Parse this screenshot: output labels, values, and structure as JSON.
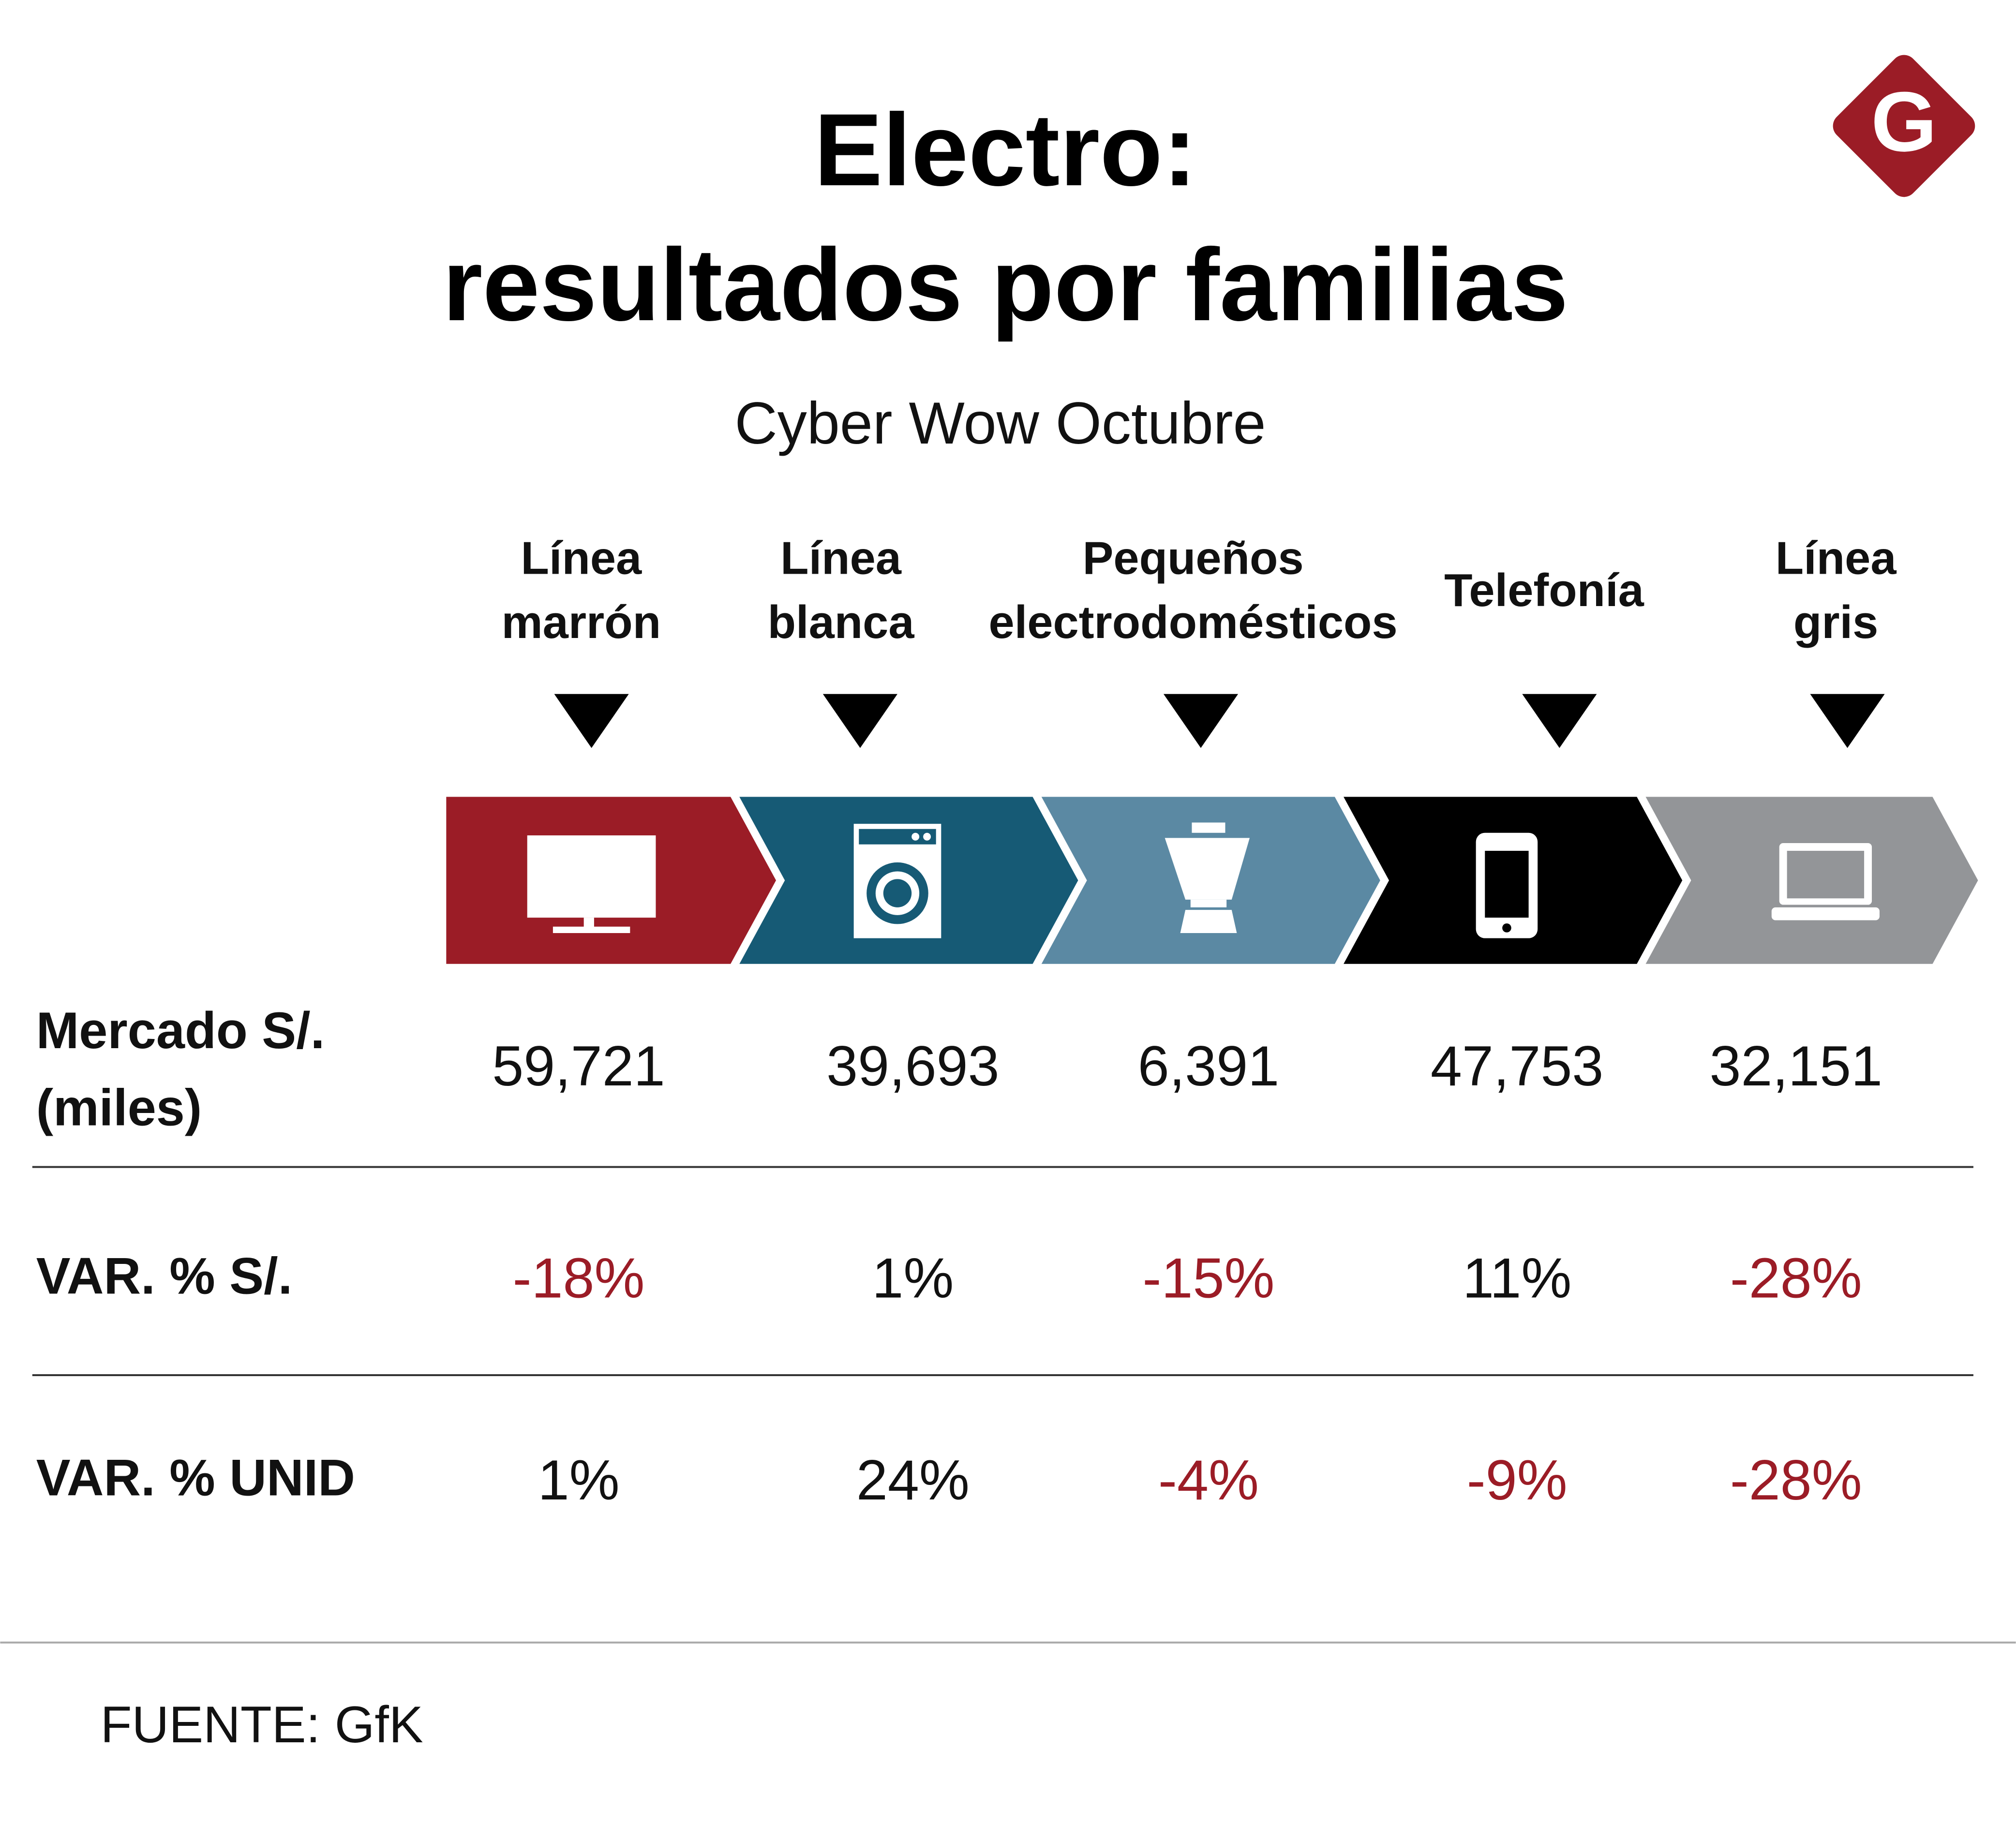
{
  "header": {
    "title": [
      "Electro:",
      "resultados por familias"
    ],
    "subtitle": "Cyber Wow  Octubre",
    "logo": "G"
  },
  "categories": [
    [
      "Línea",
      "marrón"
    ],
    [
      "Línea",
      "blanca"
    ],
    [
      "Pequeños",
      "electrodomésticos"
    ],
    [
      "Telefonía"
    ],
    [
      "Línea",
      "gris"
    ]
  ],
  "table": {
    "rows": [
      {
        "label": [
          "Mercado S/.",
          "(miles)"
        ],
        "values": [
          "59,721",
          "39,693",
          "6,391",
          "47,753",
          "32,151"
        ]
      },
      {
        "label": [
          "VAR. %  S/."
        ],
        "values": [
          "-18%",
          "1%",
          "-15%",
          "11%",
          "-28%"
        ]
      },
      {
        "label": [
          "VAR. % UNID"
        ],
        "values": [
          "1%",
          "24%",
          "-4%",
          "-9%",
          "-28%"
        ]
      }
    ]
  },
  "source": "FUENTE: GfK"
}
